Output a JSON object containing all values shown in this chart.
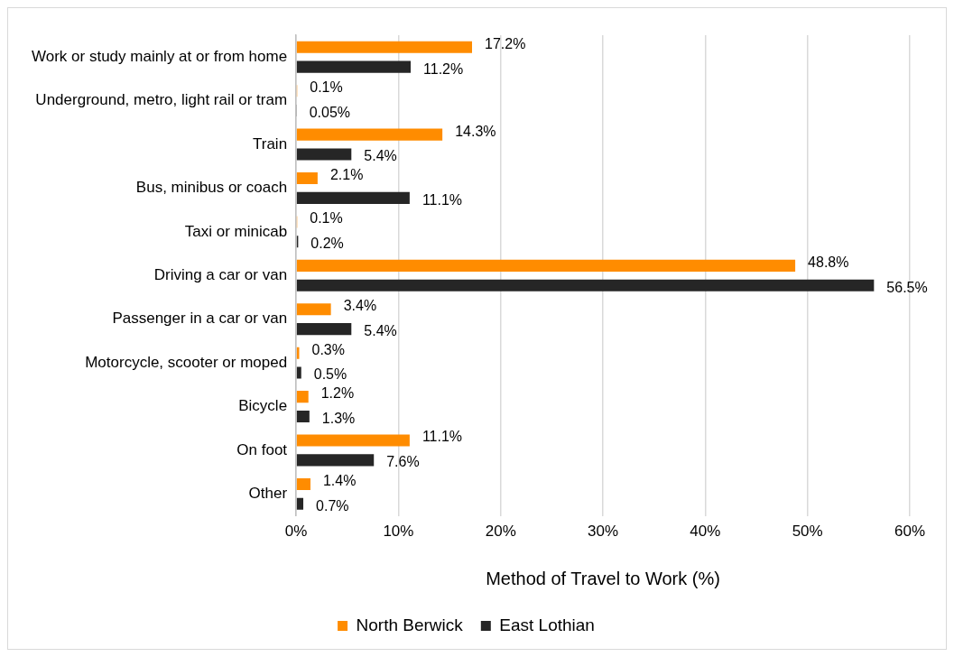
{
  "chart_data": {
    "type": "bar",
    "orientation": "horizontal",
    "xlabel": "Method of Travel to Work (%)",
    "categories": [
      "Work or study mainly at or from home",
      "Underground, metro, light rail or tram",
      "Train",
      "Bus, minibus or coach",
      "Taxi or minicab",
      "Driving a car or van",
      "Passenger in a car or van",
      "Motorcycle, scooter or moped",
      "Bicycle",
      "On foot",
      "Other"
    ],
    "series": [
      {
        "name": "North Berwick",
        "color": "#ff8c00",
        "values": [
          17.2,
          0.1,
          14.3,
          2.1,
          0.1,
          48.8,
          3.4,
          0.3,
          1.2,
          11.1,
          1.4
        ],
        "value_labels": [
          "17.2%",
          "0.1%",
          "14.3%",
          "2.1%",
          "0.1%",
          "48.8%",
          "3.4%",
          "0.3%",
          "1.2%",
          "11.1%",
          "1.4%"
        ]
      },
      {
        "name": "East Lothian",
        "color": "#262626",
        "values": [
          11.2,
          0.05,
          5.4,
          11.1,
          0.2,
          56.5,
          5.4,
          0.5,
          1.3,
          7.6,
          0.7
        ],
        "value_labels": [
          "11.2%",
          "0.05%",
          "5.4%",
          "11.1%",
          "0.2%",
          "56.5%",
          "5.4%",
          "0.5%",
          "1.3%",
          "7.6%",
          "0.7%"
        ]
      }
    ],
    "xlim": [
      0,
      60
    ],
    "xticks": [
      {
        "value": 0,
        "label": "0%"
      },
      {
        "value": 10,
        "label": "10%"
      },
      {
        "value": 20,
        "label": "20%"
      },
      {
        "value": 30,
        "label": "30%"
      },
      {
        "value": 40,
        "label": "40%"
      },
      {
        "value": 50,
        "label": "50%"
      },
      {
        "value": 60,
        "label": "60%"
      }
    ],
    "grid": "x",
    "legend": "bottom"
  }
}
